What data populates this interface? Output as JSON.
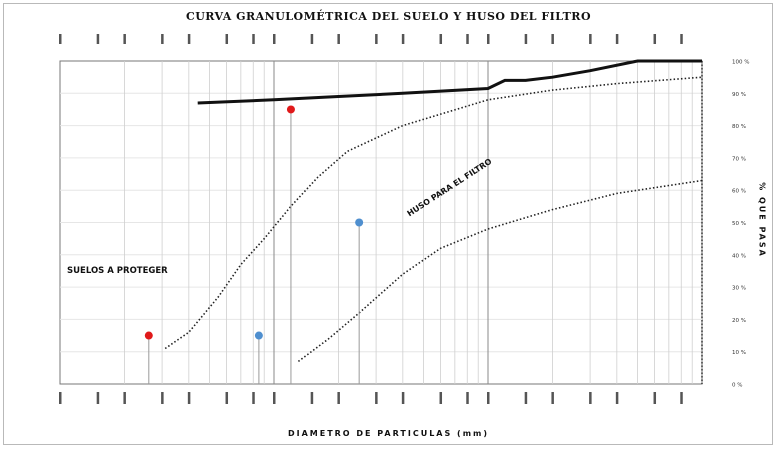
{
  "chart_data": {
    "type": "line",
    "title": "CURVA GRANULOMÉTRICA DEL SUELO Y HUSO DEL FILTRO",
    "xlabel": "DIAMETRO DE PARTICULAS (mm)",
    "ylabel": "% QUE PASA",
    "xscale": "log",
    "xlim": [
      1,
      1000
    ],
    "ylim": [
      0,
      100
    ],
    "y_ticks": [
      "0 %",
      "10 %",
      "20 %",
      "30 %",
      "40 %",
      "50 %",
      "60 %",
      "70 %",
      "80 %",
      "90 %",
      "100 %"
    ],
    "grid": true,
    "annotations": [
      "SUELOS A PROTEGER",
      "HUSO PARA EL FILTRO"
    ],
    "series": [
      {
        "style": "solid-thick",
        "color": "#111111",
        "points": [
          [
            4.4,
            87.0
          ],
          [
            10,
            88.0
          ],
          [
            20,
            89.0
          ],
          [
            40,
            90.0
          ],
          [
            100,
            91.5
          ],
          [
            120,
            94.0
          ],
          [
            150,
            94.0
          ],
          [
            200,
            95.0
          ],
          [
            300,
            97.0
          ],
          [
            500,
            100.0
          ],
          [
            1000,
            100.0
          ]
        ]
      },
      {
        "style": "dotted",
        "color": "#222222",
        "points": [
          [
            3.1,
            11.0
          ],
          [
            4.0,
            16.0
          ],
          [
            5.5,
            27.0
          ],
          [
            7.0,
            37.0
          ],
          [
            9.0,
            45.0
          ],
          [
            12,
            55.0
          ],
          [
            16,
            64.0
          ],
          [
            22,
            72.0
          ],
          [
            40,
            80.0
          ],
          [
            100,
            88.0
          ],
          [
            200,
            91.0
          ],
          [
            400,
            93.0
          ],
          [
            1000,
            95.0
          ]
        ]
      },
      {
        "style": "dotted",
        "color": "#222222",
        "points": [
          [
            13,
            7.0
          ],
          [
            18,
            14.0
          ],
          [
            25,
            22.0
          ],
          [
            40,
            34.0
          ],
          [
            60,
            42.0
          ],
          [
            100,
            48.0
          ],
          [
            200,
            54.0
          ],
          [
            400,
            59.0
          ],
          [
            1000,
            63.0
          ]
        ]
      }
    ],
    "markers": [
      {
        "x": 2.6,
        "y": 15.0,
        "color": "#e0191a"
      },
      {
        "x": 8.5,
        "y": 15.0,
        "color": "#4f8fcf"
      },
      {
        "x": 12.0,
        "y": 85.0,
        "color": "#e0191a"
      },
      {
        "x": 25.0,
        "y": 50.0,
        "color": "#4f8fcf"
      }
    ]
  }
}
